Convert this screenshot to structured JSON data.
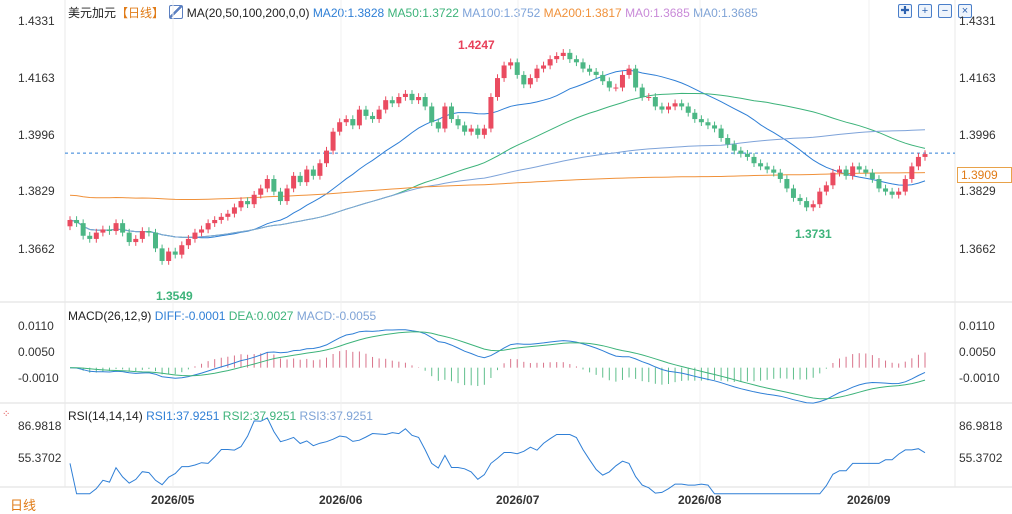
{
  "header": {
    "symbol": "美元加元",
    "period": "【日线】",
    "ma_label": "MA(20,50,100,200,0,0)",
    "ma_values": [
      {
        "text": "MA20:1.3828",
        "color": "#2f7fd6"
      },
      {
        "text": "MA50:1.3722",
        "color": "#3db37a"
      },
      {
        "text": "MA100:1.3752",
        "color": "#7ea3d9"
      },
      {
        "text": "MA200:1.3817",
        "color": "#f0913a"
      },
      {
        "text": "MA0:1.3685",
        "color": "#c98ad8"
      },
      {
        "text": "MA0:1.3685",
        "color": "#7fa3d6"
      }
    ]
  },
  "toolbar": {
    "buttons": [
      {
        "name": "crosshair-icon",
        "glyph": "✚"
      },
      {
        "name": "plus-icon",
        "glyph": "+"
      },
      {
        "name": "minus-icon",
        "glyph": "−"
      },
      {
        "name": "close-icon",
        "glyph": "×"
      }
    ]
  },
  "price_axis": {
    "ticks": [
      "1.4331",
      "1.4163",
      "1.3996",
      "1.3829",
      "1.3662"
    ],
    "current": "1.3909"
  },
  "annotations": {
    "high": "1.4247",
    "low1": "1.3549",
    "low2": "1.3731"
  },
  "macd": {
    "label": "MACD(26,12,9)",
    "values": [
      {
        "text": "DIFF:-0.0001",
        "color": "#2f7fd6"
      },
      {
        "text": "DEA:0.0027",
        "color": "#3db37a"
      },
      {
        "text": "MACD:-0.0055",
        "color": "#7fa3d6"
      }
    ],
    "ticks": [
      "0.0110",
      "0.0050",
      "-0.0010"
    ]
  },
  "rsi": {
    "label": "RSI(14,14,14)",
    "values": [
      {
        "text": "RSI1:37.9251",
        "color": "#2f7fd6"
      },
      {
        "text": "RSI2:37.9251",
        "color": "#3db37a"
      },
      {
        "text": "RSI3:37.9251",
        "color": "#7fa3d6"
      }
    ],
    "ticks": [
      "86.9818",
      "55.3702"
    ]
  },
  "footer": {
    "period_label": "日线"
  },
  "chart_data": {
    "type": "candlestick",
    "x_ticks": [
      "2026/05",
      "2026/06",
      "2026/07",
      "2026/08",
      "2026/09"
    ],
    "ylim": [
      1.3478,
      1.4331
    ],
    "closes": [
      1.37,
      1.369,
      1.365,
      1.364,
      1.366,
      1.367,
      1.3665,
      1.369,
      1.366,
      1.363,
      1.364,
      1.3665,
      1.366,
      1.361,
      1.357,
      1.36,
      1.359,
      1.362,
      1.364,
      1.366,
      1.367,
      1.369,
      1.37,
      1.371,
      1.372,
      1.374,
      1.376,
      1.375,
      1.378,
      1.38,
      1.383,
      1.379,
      1.376,
      1.38,
      1.384,
      1.382,
      1.386,
      1.384,
      1.388,
      1.392,
      1.398,
      1.401,
      1.402,
      1.4,
      1.405,
      1.403,
      1.402,
      1.405,
      1.408,
      1.407,
      1.409,
      1.41,
      1.408,
      1.409,
      1.406,
      1.401,
      1.399,
      1.406,
      1.402,
      1.4,
      1.398,
      1.399,
      1.397,
      1.399,
      1.409,
      1.415,
      1.419,
      1.42,
      1.416,
      1.413,
      1.415,
      1.418,
      1.419,
      1.421,
      1.422,
      1.423,
      1.421,
      1.42,
      1.418,
      1.417,
      1.416,
      1.414,
      1.412,
      1.412,
      1.416,
      1.418,
      1.412,
      1.409,
      1.409,
      1.406,
      1.405,
      1.406,
      1.407,
      1.406,
      1.404,
      1.402,
      1.401,
      1.4,
      1.399,
      1.396,
      1.394,
      1.392,
      1.391,
      1.39,
      1.388,
      1.387,
      1.386,
      1.385,
      1.383,
      1.38,
      1.377,
      1.376,
      1.374,
      1.375,
      1.379,
      1.381,
      1.385,
      1.386,
      1.384,
      1.387,
      1.386,
      1.385,
      1.383,
      1.38,
      1.379,
      1.378,
      1.379,
      1.383,
      1.387,
      1.39,
      1.3909
    ]
  }
}
